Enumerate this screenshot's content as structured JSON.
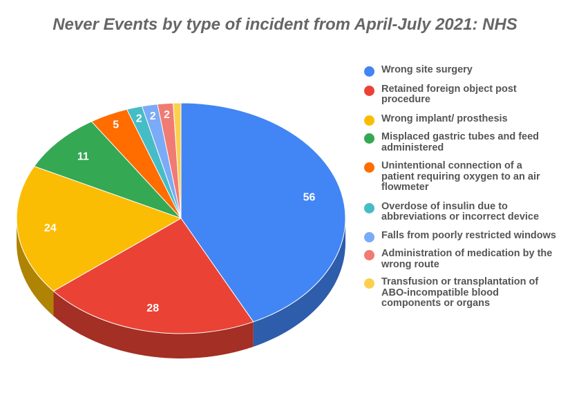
{
  "chart_data": {
    "type": "pie",
    "title": "Never Events by type of incident from April-July 2021: NHS",
    "legend_position": "right",
    "slices": [
      {
        "label": "Wrong site surgery",
        "value": 56,
        "display": "56",
        "color": "#4285F4",
        "side": "#2E5DAB"
      },
      {
        "label": "Retained foreign object post procedure",
        "value": 28,
        "display": "28",
        "color": "#EA4335",
        "side": "#A32F25"
      },
      {
        "label": "Wrong implant/ prosthesis",
        "value": 24,
        "display": "24",
        "color": "#FBBC04",
        "side": "#AF8303"
      },
      {
        "label": "Misplaced gastric tubes and feed administered",
        "value": 11,
        "display": "11",
        "color": "#34A853",
        "side": "#24753A"
      },
      {
        "label": "Unintentional connection of a patient requiring oxygen to an air flowmeter",
        "value": 5,
        "display": "5",
        "color": "#FF6D01",
        "side": "#B24C00"
      },
      {
        "label": "Overdose of insulin due to abbreviations or incorrect device",
        "value": 2,
        "display": "2",
        "color": "#46BDC6",
        "side": "#31848A"
      },
      {
        "label": "Falls from poorly restricted windows",
        "value": 2,
        "display": "2",
        "color": "#7BAAF7",
        "side": "#5676AC"
      },
      {
        "label": "Administration of medication by the wrong route",
        "value": 2,
        "display": "2",
        "color": "#F07B72",
        "side": "#A8564F"
      },
      {
        "label": "Transfusion or transplantation of ABO-incompatible blood components or organs",
        "value": 1,
        "display": "",
        "color": "#FCD04F",
        "side": "#B09137"
      }
    ]
  }
}
